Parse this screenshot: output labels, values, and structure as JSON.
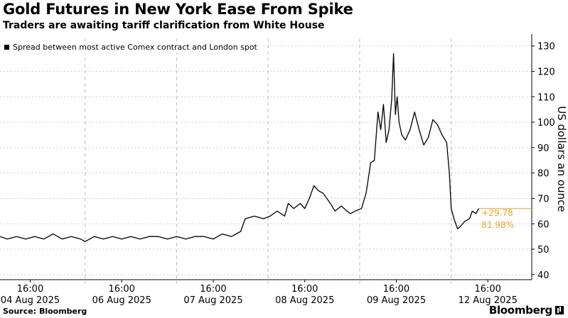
{
  "header": {
    "title": "Gold Futures in New York Ease From Spike",
    "subtitle": "Traders are awaiting tariff clarification from White House"
  },
  "footer": {
    "source": "Source: Bloomberg",
    "brand": "Bloomberg"
  },
  "colors": {
    "line": "#000000",
    "accent": "#e8a52a",
    "grid": "#cfcfcf",
    "text": "#000000"
  },
  "chart_data": {
    "type": "line",
    "legend": "Spread between most active Comex contract and London spot",
    "legend_placement": "top-left",
    "ylabel": "US dollars an ounce",
    "ylim": [
      38,
      133
    ],
    "yticks": [
      40,
      50,
      60,
      70,
      80,
      90,
      100,
      110,
      120,
      130
    ],
    "y_axis_side": "right",
    "grid": true,
    "xticks": [
      {
        "x": 0.0,
        "time": "16:00",
        "date": "04 Aug 2025"
      },
      {
        "x": 1.0,
        "time": "16:00",
        "date": "06 Aug 2025"
      },
      {
        "x": 2.0,
        "time": "16:00",
        "date": "07 Aug 2025"
      },
      {
        "x": 3.0,
        "time": "16:00",
        "date": "08 Aug 2025"
      },
      {
        "x": 4.0,
        "time": "16:00",
        "date": "09 Aug 2025"
      },
      {
        "x": 5.0,
        "time": "16:00",
        "date": "12 Aug 2025"
      }
    ],
    "day_separators": [
      0.6,
      1.6,
      2.6,
      3.6,
      4.6
    ],
    "xlim": [
      -0.33,
      5.48
    ],
    "series": [
      {
        "values": [
          [
            -0.33,
            55
          ],
          [
            -0.25,
            54
          ],
          [
            -0.15,
            55
          ],
          [
            -0.05,
            54
          ],
          [
            0.05,
            55
          ],
          [
            0.15,
            54
          ],
          [
            0.25,
            56
          ],
          [
            0.35,
            54
          ],
          [
            0.45,
            55
          ],
          [
            0.55,
            54
          ],
          [
            0.6,
            53
          ],
          [
            0.7,
            55
          ],
          [
            0.8,
            54
          ],
          [
            0.9,
            55
          ],
          [
            1.0,
            54
          ],
          [
            1.1,
            55
          ],
          [
            1.2,
            54
          ],
          [
            1.3,
            55
          ],
          [
            1.4,
            55
          ],
          [
            1.5,
            54
          ],
          [
            1.6,
            55
          ],
          [
            1.7,
            54
          ],
          [
            1.8,
            55
          ],
          [
            1.9,
            55
          ],
          [
            2.0,
            54
          ],
          [
            2.1,
            56
          ],
          [
            2.2,
            55
          ],
          [
            2.3,
            57
          ],
          [
            2.35,
            62
          ],
          [
            2.45,
            63
          ],
          [
            2.55,
            62
          ],
          [
            2.62,
            63
          ],
          [
            2.7,
            65
          ],
          [
            2.78,
            63
          ],
          [
            2.82,
            68
          ],
          [
            2.88,
            66
          ],
          [
            2.95,
            68
          ],
          [
            3.0,
            66
          ],
          [
            3.05,
            70
          ],
          [
            3.1,
            75
          ],
          [
            3.15,
            73
          ],
          [
            3.2,
            72
          ],
          [
            3.28,
            68
          ],
          [
            3.33,
            65
          ],
          [
            3.4,
            67
          ],
          [
            3.46,
            65
          ],
          [
            3.5,
            64
          ],
          [
            3.55,
            65
          ],
          [
            3.62,
            66
          ],
          [
            3.67,
            72
          ],
          [
            3.72,
            84
          ],
          [
            3.76,
            85
          ],
          [
            3.8,
            104
          ],
          [
            3.83,
            97
          ],
          [
            3.86,
            107
          ],
          [
            3.89,
            92
          ],
          [
            3.92,
            97
          ],
          [
            3.95,
            109
          ],
          [
            3.97,
            127
          ],
          [
            3.99,
            103
          ],
          [
            4.01,
            110
          ],
          [
            4.03,
            100
          ],
          [
            4.06,
            95
          ],
          [
            4.1,
            93
          ],
          [
            4.15,
            97
          ],
          [
            4.2,
            104
          ],
          [
            4.25,
            97
          ],
          [
            4.3,
            91
          ],
          [
            4.35,
            94
          ],
          [
            4.4,
            101
          ],
          [
            4.45,
            99
          ],
          [
            4.5,
            95
          ],
          [
            4.55,
            92
          ],
          [
            4.58,
            80
          ],
          [
            4.6,
            66
          ],
          [
            4.63,
            62
          ],
          [
            4.67,
            58
          ],
          [
            4.7,
            59
          ],
          [
            4.75,
            61
          ],
          [
            4.8,
            62
          ],
          [
            4.83,
            65
          ],
          [
            4.87,
            64
          ],
          [
            4.9,
            66
          ]
        ]
      }
    ],
    "annotations": [
      {
        "text": "+29.78",
        "series_value": 66
      },
      {
        "text": "81.98%"
      }
    ]
  }
}
